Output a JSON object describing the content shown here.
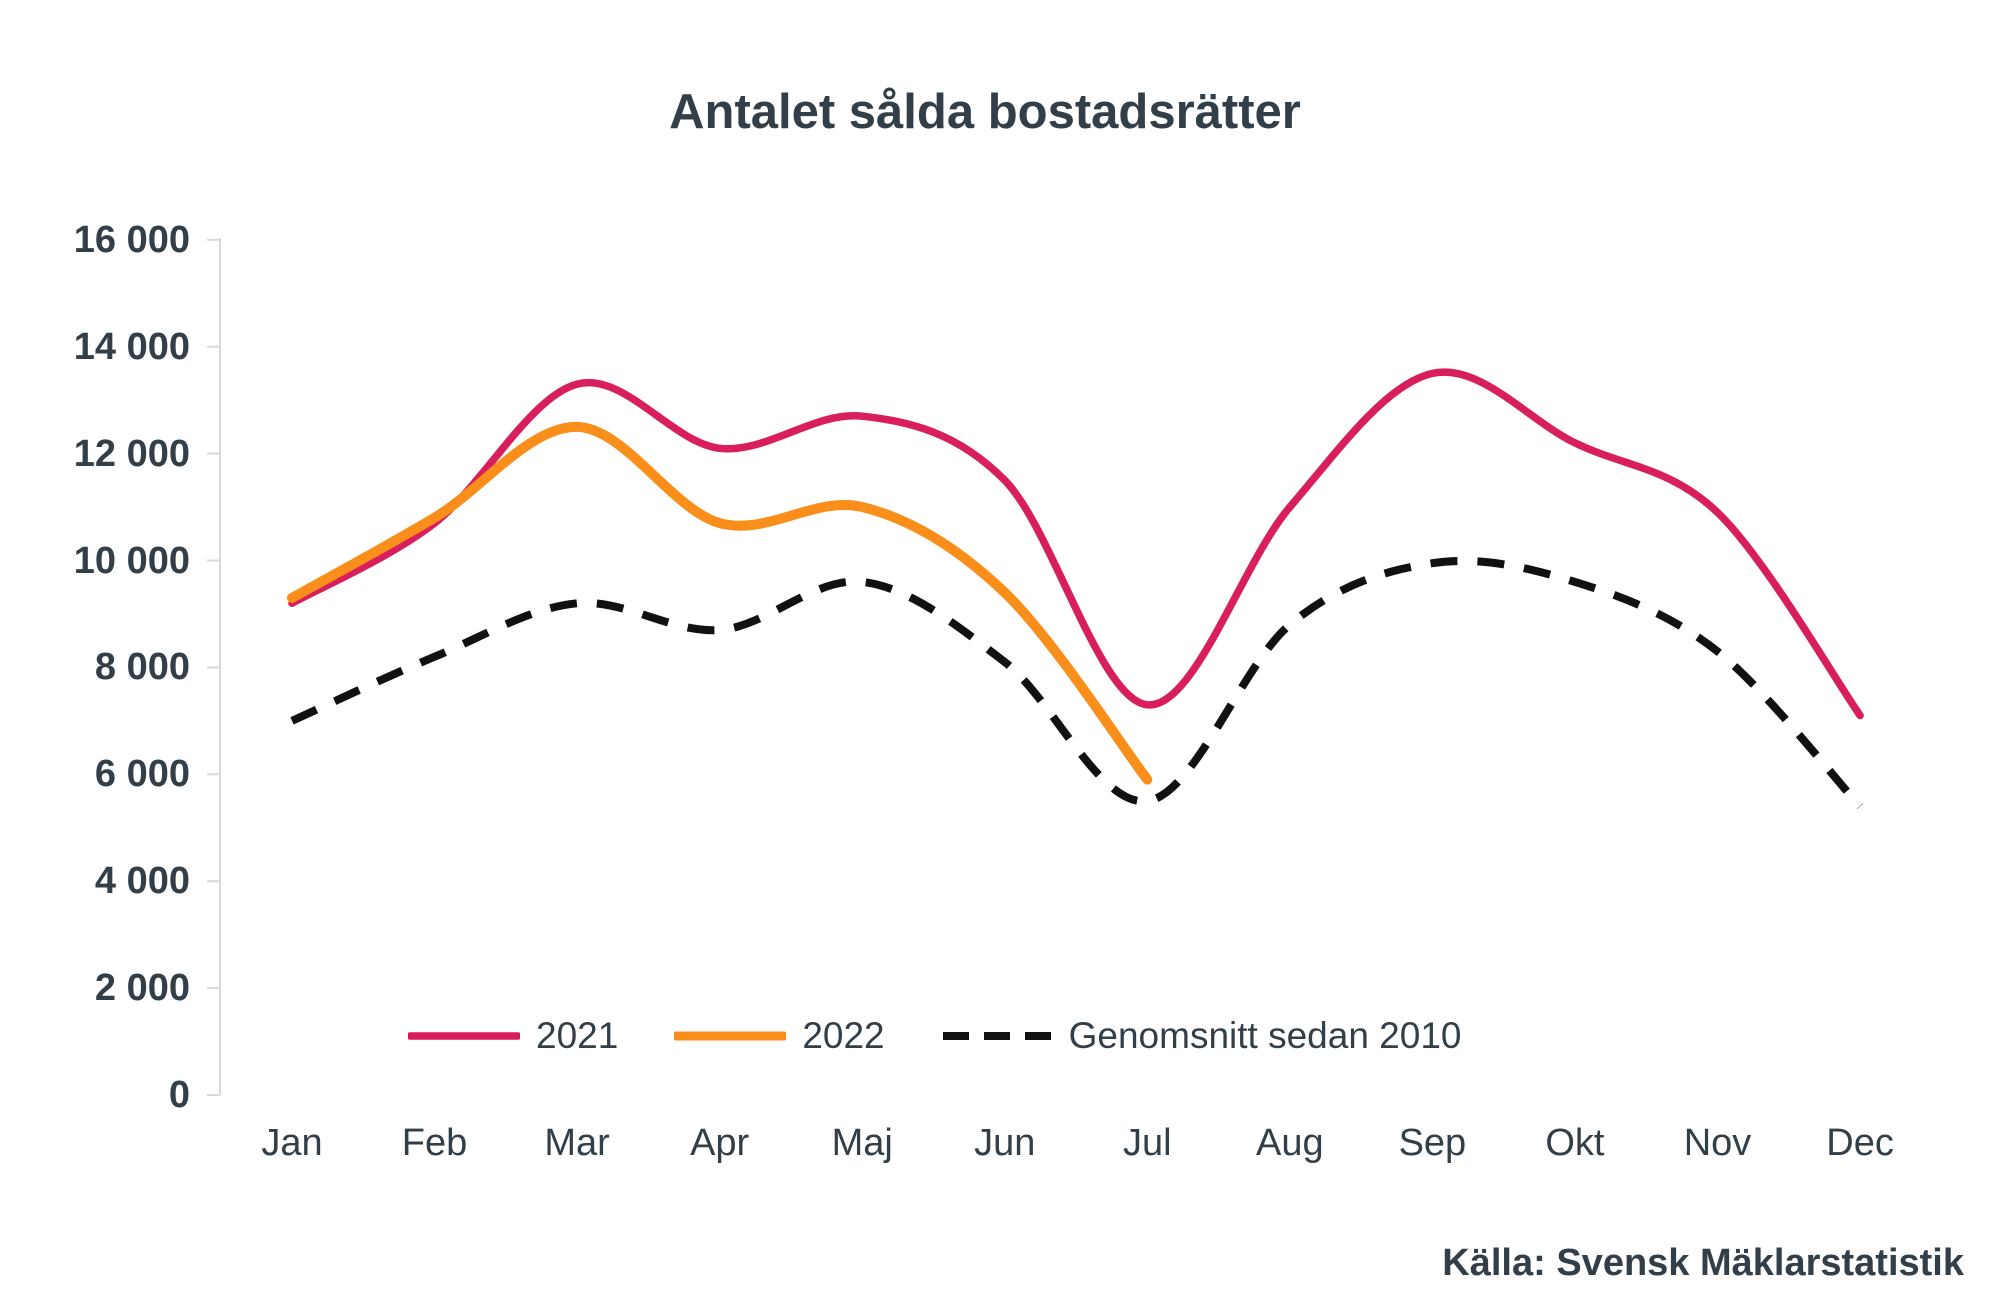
{
  "title": "Antalet sålda bostadsrätter",
  "source": "Källa: Svensk Mäklarstatistik",
  "colors": {
    "series_2021": "#D81E5C",
    "series_2022": "#FA8E1B",
    "series_avg": "#111111",
    "text": "#333F48",
    "axis_line": "#D9D9D9"
  },
  "y_axis": {
    "tick_labels": [
      "16 000",
      "14 000",
      "12 000",
      "10 000",
      "8 000",
      "6 000",
      "4 000",
      "2 000",
      "0"
    ]
  },
  "chart_data": {
    "type": "line",
    "title": "Antalet sålda bostadsrätter",
    "categories": [
      "Jan",
      "Feb",
      "Mar",
      "Apr",
      "Maj",
      "Jun",
      "Jul",
      "Aug",
      "Sep",
      "Okt",
      "Nov",
      "Dec"
    ],
    "series": [
      {
        "name": "2021",
        "color": "#D81E5C",
        "line_style": "solid",
        "stroke_width": 7.5,
        "values": [
          9200,
          10700,
          13300,
          12100,
          12700,
          11500,
          7300,
          11000,
          13500,
          12200,
          10900,
          7100
        ]
      },
      {
        "name": "2022",
        "color": "#FA8E1B",
        "line_style": "solid",
        "stroke_width": 10,
        "values": [
          9300,
          10800,
          12500,
          10700,
          11000,
          9400,
          5900
        ]
      },
      {
        "name": "Genomsnitt sedan 2010",
        "color": "#111111",
        "line_style": "dashed",
        "stroke_width": 8,
        "values": [
          7000,
          8200,
          9200,
          8700,
          9600,
          8100,
          5500,
          8800,
          9950,
          9600,
          8300,
          5400
        ]
      }
    ],
    "ylim": [
      0,
      16000
    ],
    "y_step": 2000,
    "xlabel": "",
    "ylabel": "",
    "grid": false,
    "smoothing": "spline",
    "legend_position": "bottom-inside-left"
  }
}
